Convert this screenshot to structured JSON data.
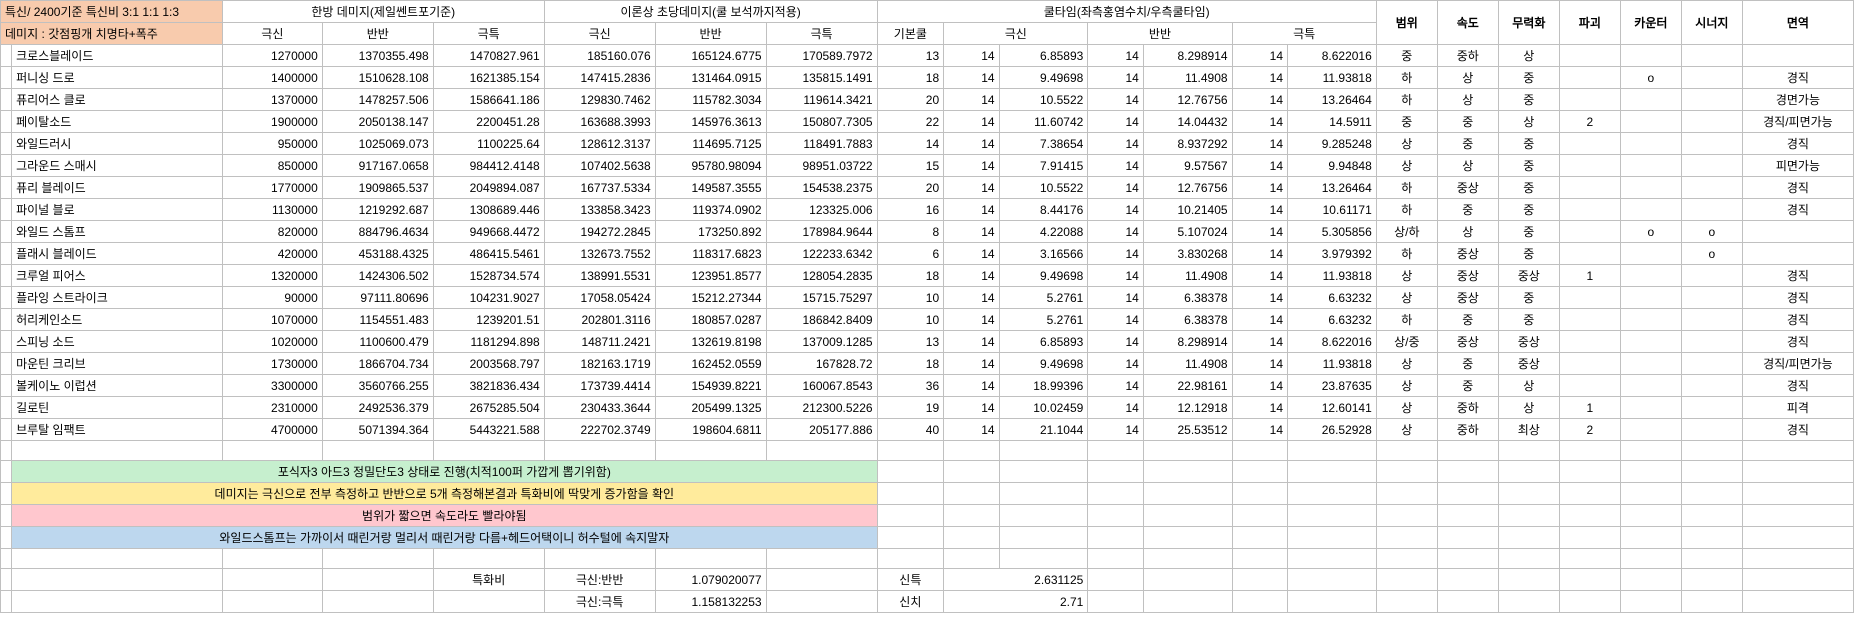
{
  "header": {
    "topLeft1": "특신/ 2400기준 특신비 3:1 1:1 1:3",
    "topLeft2": "데미지 : 갓점핑개 치명타+폭주",
    "group1": "한방 데미지(제일쎈트포기준)",
    "group2": "이론상 초당데미지(쿨 보석까지적용)",
    "group3": "쿨타임(좌측홍염수치/우측쿨타임)",
    "tags": [
      "범위",
      "속도",
      "무력화",
      "파괴",
      "카운터",
      "시너지",
      "면역"
    ],
    "sub_damage": [
      "극신",
      "반반",
      "극특"
    ],
    "sub_ct": [
      "기본쿨",
      "극신",
      "반반",
      "극특"
    ]
  },
  "skills": [
    {
      "name": "크로스블레이드",
      "d": [
        1270000,
        "1370355.498",
        "1470827.961",
        "185160.076",
        "165124.6775",
        "170589.7972"
      ],
      "ct": [
        13,
        14,
        "6.85893",
        14,
        "8.298914",
        14,
        "8.622016"
      ],
      "tags": [
        "중",
        "중하",
        "상",
        "",
        "",
        "",
        ""
      ]
    },
    {
      "name": "퍼니싱 드로",
      "d": [
        1400000,
        "1510628.108",
        "1621385.154",
        "147415.2836",
        "131464.0915",
        "135815.1491"
      ],
      "ct": [
        18,
        14,
        "9.49698",
        14,
        "11.4908",
        14,
        "11.93818"
      ],
      "tags": [
        "하",
        "상",
        "중",
        "",
        "o",
        "",
        "경직"
      ]
    },
    {
      "name": "퓨리어스 클로",
      "d": [
        1370000,
        "1478257.506",
        "1586641.186",
        "129830.7462",
        "115782.3034",
        "119614.3421"
      ],
      "ct": [
        20,
        14,
        "10.5522",
        14,
        "12.76756",
        14,
        "13.26464"
      ],
      "tags": [
        "하",
        "상",
        "중",
        "",
        "",
        "",
        "경면가능"
      ]
    },
    {
      "name": "페이탈소드",
      "d": [
        1900000,
        "2050138.147",
        "2200451.28",
        "163688.3993",
        "145976.3613",
        "150807.7305"
      ],
      "ct": [
        22,
        14,
        "11.60742",
        14,
        "14.04432",
        14,
        "14.5911"
      ],
      "tags": [
        "중",
        "중",
        "상",
        "2",
        "",
        "",
        "경직/피면가능"
      ]
    },
    {
      "name": "와일드러시",
      "d": [
        950000,
        "1025069.073",
        "1100225.64",
        "128612.3137",
        "114695.7125",
        "118491.7883"
      ],
      "ct": [
        14,
        14,
        "7.38654",
        14,
        "8.937292",
        14,
        "9.285248"
      ],
      "tags": [
        "상",
        "중",
        "중",
        "",
        "",
        "",
        "경직"
      ]
    },
    {
      "name": "그라운드 스매시",
      "d": [
        850000,
        "917167.0658",
        "984412.4148",
        "107402.5638",
        "95780.98094",
        "98951.03722"
      ],
      "ct": [
        15,
        14,
        "7.91415",
        14,
        "9.57567",
        14,
        "9.94848"
      ],
      "tags": [
        "상",
        "상",
        "중",
        "",
        "",
        "",
        "피면가능"
      ]
    },
    {
      "name": "퓨리 블레이드",
      "d": [
        1770000,
        "1909865.537",
        "2049894.087",
        "167737.5334",
        "149587.3555",
        "154538.2375"
      ],
      "ct": [
        20,
        14,
        "10.5522",
        14,
        "12.76756",
        14,
        "13.26464"
      ],
      "tags": [
        "하",
        "중상",
        "중",
        "",
        "",
        "",
        "경직"
      ]
    },
    {
      "name": "파이널 블로",
      "d": [
        1130000,
        "1219292.687",
        "1308689.446",
        "133858.3423",
        "119374.0902",
        "123325.006"
      ],
      "ct": [
        16,
        14,
        "8.44176",
        14,
        "10.21405",
        14,
        "10.61171"
      ],
      "tags": [
        "하",
        "중",
        "중",
        "",
        "",
        "",
        "경직"
      ]
    },
    {
      "name": "와일드 스톰프",
      "d": [
        820000,
        "884796.4634",
        "949668.4472",
        "194272.2845",
        "173250.892",
        "178984.9644"
      ],
      "ct": [
        8,
        14,
        "4.22088",
        14,
        "5.107024",
        14,
        "5.305856"
      ],
      "tags": [
        "상/하",
        "상",
        "중",
        "",
        "o",
        "o",
        ""
      ]
    },
    {
      "name": "플래시 블레이드",
      "d": [
        420000,
        "453188.4325",
        "486415.5461",
        "132673.7552",
        "118317.6823",
        "122233.6342"
      ],
      "ct": [
        6,
        14,
        "3.16566",
        14,
        "3.830268",
        14,
        "3.979392"
      ],
      "tags": [
        "하",
        "중상",
        "중",
        "",
        "",
        "o",
        ""
      ]
    },
    {
      "name": "크루얼 피어스",
      "d": [
        1320000,
        "1424306.502",
        "1528734.574",
        "138991.5531",
        "123951.8577",
        "128054.2835"
      ],
      "ct": [
        18,
        14,
        "9.49698",
        14,
        "11.4908",
        14,
        "11.93818"
      ],
      "tags": [
        "상",
        "중상",
        "중상",
        "1",
        "",
        "",
        "경직"
      ]
    },
    {
      "name": "플라잉 스트라이크",
      "d": [
        90000,
        "97111.80696",
        "104231.9027",
        "17058.05424",
        "15212.27344",
        "15715.75297"
      ],
      "ct": [
        10,
        14,
        "5.2761",
        14,
        "6.38378",
        14,
        "6.63232"
      ],
      "tags": [
        "상",
        "중상",
        "중",
        "",
        "",
        "",
        "경직"
      ]
    },
    {
      "name": "허리케인소드",
      "d": [
        1070000,
        "1154551.483",
        "1239201.51",
        "202801.3116",
        "180857.0287",
        "186842.8409"
      ],
      "ct": [
        10,
        14,
        "5.2761",
        14,
        "6.38378",
        14,
        "6.63232"
      ],
      "tags": [
        "하",
        "중",
        "중",
        "",
        "",
        "",
        "경직"
      ]
    },
    {
      "name": "스피닝 소드",
      "d": [
        1020000,
        "1100600.479",
        "1181294.898",
        "148711.2421",
        "132619.8198",
        "137009.1285"
      ],
      "ct": [
        13,
        14,
        "6.85893",
        14,
        "8.298914",
        14,
        "8.622016"
      ],
      "tags": [
        "상/중",
        "중상",
        "중상",
        "",
        "",
        "",
        "경직"
      ]
    },
    {
      "name": "마운틴 크리브",
      "d": [
        1730000,
        "1866704.734",
        "2003568.797",
        "182163.1719",
        "162452.0559",
        "167828.72"
      ],
      "ct": [
        18,
        14,
        "9.49698",
        14,
        "11.4908",
        14,
        "11.93818"
      ],
      "tags": [
        "상",
        "중",
        "중상",
        "",
        "",
        "",
        "경직/피면가능"
      ]
    },
    {
      "name": "볼케이노 이럽션",
      "d": [
        3300000,
        "3560766.255",
        "3821836.434",
        "173739.4414",
        "154939.8221",
        "160067.8543"
      ],
      "ct": [
        36,
        14,
        "18.99396",
        14,
        "22.98161",
        14,
        "23.87635"
      ],
      "tags": [
        "상",
        "중",
        "상",
        "",
        "",
        "",
        "경직"
      ]
    },
    {
      "name": "길로틴",
      "d": [
        2310000,
        "2492536.379",
        "2675285.504",
        "230433.3644",
        "205499.1325",
        "212300.5226"
      ],
      "ct": [
        19,
        14,
        "10.02459",
        14,
        "12.12918",
        14,
        "12.60141"
      ],
      "tags": [
        "상",
        "중하",
        "상",
        "1",
        "",
        "",
        "피격"
      ]
    },
    {
      "name": "브루탈 임팩트",
      "d": [
        4700000,
        "5071394.364",
        "5443221.588",
        "222702.3749",
        "198604.6811",
        "205177.886"
      ],
      "ct": [
        40,
        14,
        "21.1044",
        14,
        "25.53512",
        14,
        "26.52928"
      ],
      "tags": [
        "상",
        "중하",
        "최상",
        "2",
        "",
        "",
        "경직"
      ]
    }
  ],
  "notes": [
    {
      "cls": "note-green",
      "text": "포식자3 아드3 정밀단도3 상태로 진행(치적100퍼 가깝게 뽑기위함)"
    },
    {
      "cls": "note-yellow",
      "text": "데미지는 극신으로 전부 측정하고 반반으로 5개 측정해본결과 특화비에 딱맞게 증가함을 확인"
    },
    {
      "cls": "note-pink",
      "text": "범위가 짧으면 속도라도 빨라야됨"
    },
    {
      "cls": "note-blue",
      "text": "와일드스톰프는 가까이서 때린거랑 멀리서 때린거랑 다름+헤드어택이니 허수털에 속지말자"
    }
  ],
  "footer": {
    "label": "특화비",
    "rows": [
      {
        "k": "극신:반반",
        "v": "1.079020077",
        "k2": "신특",
        "v2": "2.631125"
      },
      {
        "k": "극신:극특",
        "v": "1.158132253",
        "k2": "신치",
        "v2": "2.71"
      }
    ]
  },
  "colWidths": {
    "c0": 10,
    "c1": 190,
    "c2": 90,
    "c3": 100,
    "c4": 100,
    "c5": 100,
    "c6": 100,
    "c7": 100,
    "c8": 60,
    "c9": 50,
    "c10": 80,
    "c11": 50,
    "c12": 80,
    "c13": 50,
    "c14": 80,
    "c15": 55,
    "c16": 55,
    "c17": 55,
    "c18": 55,
    "c19": 55,
    "c20": 55,
    "c21": 100
  }
}
